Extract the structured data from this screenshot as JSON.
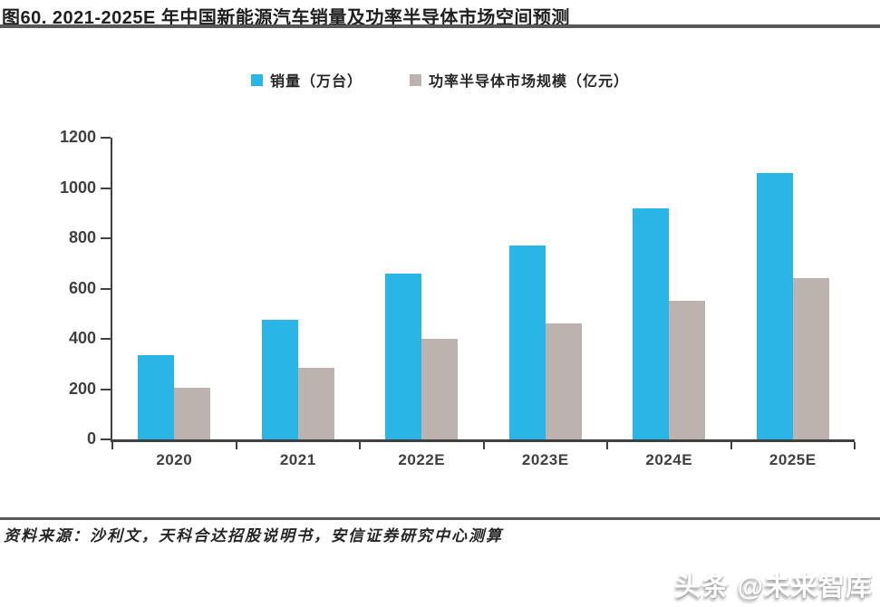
{
  "header": {
    "title": "图60. 2021-2025E 年中国新能源汽车销量及功率半导体市场空间预测"
  },
  "chart_data": {
    "type": "bar",
    "title": "2021-2025E 年中国新能源汽车销量及功率半导体市场空间预测",
    "categories": [
      "2020",
      "2021",
      "2022E",
      "2023E",
      "2024E",
      "2025E"
    ],
    "series": [
      {
        "name": "销量（万台）",
        "color": "#29B6E6",
        "values": [
          335,
          475,
          660,
          770,
          920,
          1060
        ]
      },
      {
        "name": "功率半导体市场规模（亿元）",
        "color": "#BCB3AF",
        "values": [
          205,
          285,
          400,
          460,
          550,
          640
        ]
      }
    ],
    "xlabel": "",
    "ylabel": "",
    "ylim": [
      0,
      1200
    ],
    "yticks": [
      0,
      200,
      400,
      600,
      800,
      1000,
      1200
    ],
    "grid": false,
    "legend_position": "top-center",
    "axis_color": "#404040"
  },
  "footer": {
    "source": "资料来源：沙利文，天科合达招股说明书，安信证券研究中心测算",
    "watermark": "头条 @未来智库"
  }
}
